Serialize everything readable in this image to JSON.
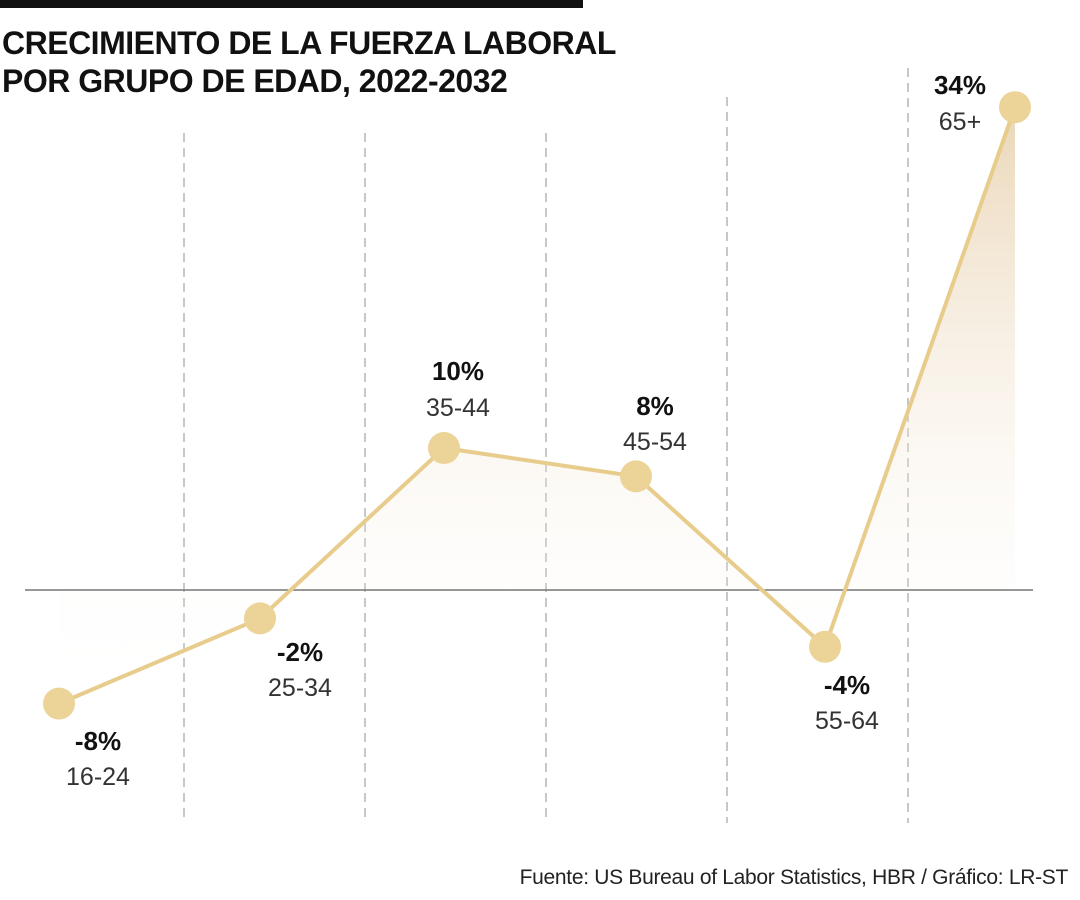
{
  "title_lines": [
    "CRECIMIENTO DE LA FUERZA LABORAL",
    "POR GRUPO DE EDAD, 2022-2032"
  ],
  "source": "Fuente: US Bureau of Labor Statistics, HBR / Gráfico: LR-ST",
  "colors": {
    "line": "#e8cc8c",
    "marker": "#ecd397",
    "fill": "#ead2a8",
    "baseline": "#777777",
    "gridline": "#aaaaaa",
    "title_rule": "#111111"
  },
  "chart_data": {
    "type": "line",
    "title": "CRECIMIENTO DE LA FUERZA LABORAL POR GRUPO DE EDAD, 2022-2032",
    "categories": [
      "16-24",
      "25-34",
      "35-44",
      "45-54",
      "55-64",
      "65+"
    ],
    "values": [
      -8,
      -2,
      10,
      8,
      -4,
      34
    ],
    "value_labels": [
      "-8%",
      "-2%",
      "10%",
      "8%",
      "-4%",
      "34%"
    ],
    "units": "%",
    "baseline": 0,
    "grid": "vertical-dashed",
    "xlabel": "",
    "ylabel": "",
    "ylim": [
      -10,
      36
    ]
  }
}
